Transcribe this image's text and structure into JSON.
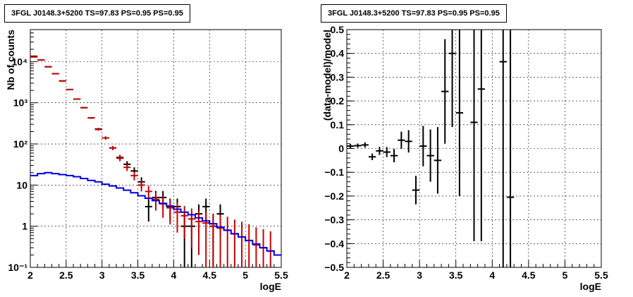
{
  "chart_data": [
    {
      "type": "line",
      "title": "3FGL J0148.3+5200 TS=97.83 PS=0.95 PS=0.95",
      "xlabel": "logE",
      "ylabel": "Nb of counts",
      "xlim": [
        2,
        5.5
      ],
      "ylim": [
        0.1,
        60000
      ],
      "yscale": "log",
      "grid": true,
      "xticks": [
        "2",
        "2.5",
        "3",
        "3.5",
        "4",
        "4.5",
        "5",
        "5.5"
      ],
      "yticks": [
        {
          "value": 0.1,
          "label": "10⁻¹"
        },
        {
          "value": 1,
          "label": "1"
        },
        {
          "value": 10,
          "label": "10"
        },
        {
          "value": 100,
          "label": "10²"
        },
        {
          "value": 1000,
          "label": "10³"
        },
        {
          "value": 10000,
          "label": "10⁴"
        }
      ],
      "series": [
        {
          "color": "#000000",
          "style": "errorbar",
          "points": [
            [
              2.05,
              13500,
              116
            ],
            [
              2.15,
              11000,
              105
            ],
            [
              2.25,
              7500,
              87
            ],
            [
              2.35,
              5100,
              71
            ],
            [
              2.45,
              3400,
              58
            ],
            [
              2.55,
              2100,
              46
            ],
            [
              2.65,
              1230,
              35
            ],
            [
              2.75,
              760,
              28
            ],
            [
              2.85,
              430,
              21
            ],
            [
              2.95,
              230,
              15
            ],
            [
              3.05,
              140,
              12
            ],
            [
              3.15,
              80,
              9
            ],
            [
              3.25,
              47,
              7
            ],
            [
              3.35,
              32,
              6
            ],
            [
              3.45,
              22,
              5
            ],
            [
              3.55,
              12,
              3.5
            ],
            [
              3.65,
              3,
              1.7
            ],
            [
              3.75,
              5,
              2.2
            ],
            [
              3.85,
              5,
              2.2
            ],
            [
              3.95,
              3,
              1.7
            ],
            [
              4.05,
              3,
              1.7
            ],
            [
              4.15,
              1,
              1
            ],
            [
              4.25,
              1,
              1
            ],
            [
              4.35,
              2,
              1.4
            ],
            [
              4.45,
              3,
              1.7
            ],
            [
              4.55,
              1,
              1
            ],
            [
              4.65,
              2,
              1.4
            ]
          ]
        },
        {
          "color": "#cc0000",
          "style": "errorbar",
          "points": [
            [
              2.05,
              13000,
              114
            ],
            [
              2.15,
              11000,
              105
            ],
            [
              2.25,
              7500,
              87
            ],
            [
              2.35,
              5100,
              71
            ],
            [
              2.45,
              3400,
              58
            ],
            [
              2.55,
              2100,
              46
            ],
            [
              2.65,
              1230,
              35
            ],
            [
              2.75,
              760,
              28
            ],
            [
              2.85,
              430,
              21
            ],
            [
              2.95,
              225,
              15
            ],
            [
              3.05,
              140,
              12
            ],
            [
              3.15,
              80,
              9
            ],
            [
              3.25,
              45,
              7
            ],
            [
              3.35,
              27,
              5
            ],
            [
              3.45,
              17,
              4
            ],
            [
              3.55,
              10,
              3
            ],
            [
              3.65,
              7,
              2.6
            ],
            [
              3.75,
              4.5,
              2.1
            ],
            [
              3.85,
              3.5,
              1.9
            ],
            [
              3.95,
              2.8,
              1.7
            ],
            [
              4.05,
              2.2,
              1.5
            ],
            [
              4.15,
              1.8,
              1.3
            ],
            [
              4.25,
              1.5,
              1.2
            ],
            [
              4.35,
              1.3,
              1.1
            ],
            [
              4.45,
              1.2,
              1.1
            ],
            [
              4.55,
              1,
              1
            ],
            [
              4.65,
              0.9,
              0.95
            ],
            [
              4.75,
              0.8,
              0.9
            ],
            [
              4.85,
              0.65,
              0.8
            ],
            [
              4.95,
              0.55,
              0.74
            ],
            [
              5.05,
              0.45,
              0.67
            ],
            [
              5.15,
              0.35,
              0.59
            ],
            [
              5.25,
              0.3,
              0.55
            ],
            [
              5.35,
              0.25,
              0.5
            ]
          ]
        },
        {
          "color": "#0000dd",
          "style": "histogram",
          "binwidth": 0.1,
          "points": [
            [
              2.05,
              17
            ],
            [
              2.15,
              19
            ],
            [
              2.25,
              20
            ],
            [
              2.35,
              19
            ],
            [
              2.45,
              18
            ],
            [
              2.55,
              17
            ],
            [
              2.65,
              16
            ],
            [
              2.75,
              14.5
            ],
            [
              2.85,
              13
            ],
            [
              2.95,
              12
            ],
            [
              3.05,
              10.5
            ],
            [
              3.15,
              9.5
            ],
            [
              3.25,
              8.5
            ],
            [
              3.35,
              7.5
            ],
            [
              3.45,
              6.5
            ],
            [
              3.55,
              5.5
            ],
            [
              3.65,
              4.8
            ],
            [
              3.75,
              4.2
            ],
            [
              3.85,
              3.6
            ],
            [
              3.95,
              3.1
            ],
            [
              4.05,
              2.6
            ],
            [
              4.15,
              2.2
            ],
            [
              4.25,
              1.9
            ],
            [
              4.35,
              1.6
            ],
            [
              4.45,
              1.35
            ],
            [
              4.55,
              1.15
            ],
            [
              4.65,
              0.95
            ],
            [
              4.75,
              0.8
            ],
            [
              4.85,
              0.66
            ],
            [
              4.95,
              0.55
            ],
            [
              5.05,
              0.45
            ],
            [
              5.15,
              0.37
            ],
            [
              5.25,
              0.3
            ],
            [
              5.35,
              0.25
            ],
            [
              5.45,
              0.2
            ]
          ]
        }
      ]
    },
    {
      "type": "scatter",
      "title": "3FGL J0148.3+5200 TS=97.83 PS=0.95 PS=0.95",
      "xlabel": "logE",
      "ylabel": "(data-model)/model",
      "xlim": [
        2,
        5.5
      ],
      "ylim": [
        -0.5,
        0.5
      ],
      "yscale": "linear",
      "grid": true,
      "xticks": [
        "2",
        "2.5",
        "3",
        "3.5",
        "4",
        "4.5",
        "5",
        "5.5"
      ],
      "yticks": [
        {
          "value": -0.5,
          "label": "−0.5"
        },
        {
          "value": -0.4,
          "label": "−0.4"
        },
        {
          "value": -0.3,
          "label": "−0.3"
        },
        {
          "value": -0.2,
          "label": "−0.2"
        },
        {
          "value": -0.1,
          "label": "−0.1"
        },
        {
          "value": 0,
          "label": "0"
        },
        {
          "value": 0.1,
          "label": "0.1"
        },
        {
          "value": 0.2,
          "label": "0.2"
        },
        {
          "value": 0.3,
          "label": "0.3"
        },
        {
          "value": 0.4,
          "label": "0.4"
        },
        {
          "value": 0.5,
          "label": "0.5"
        }
      ],
      "series": [
        {
          "color": "#000000",
          "style": "errorbar",
          "points": [
            [
              2.05,
              0.01,
              0.009
            ],
            [
              2.15,
              0.012,
              0.009
            ],
            [
              2.25,
              0.015,
              0.011
            ],
            [
              2.35,
              -0.035,
              0.014
            ],
            [
              2.45,
              -0.01,
              0.017
            ],
            [
              2.55,
              -0.015,
              0.021
            ],
            [
              2.65,
              -0.03,
              0.028
            ],
            [
              2.75,
              0.035,
              0.036
            ],
            [
              2.85,
              0.03,
              0.047
            ],
            [
              2.95,
              -0.175,
              0.06
            ],
            [
              3.05,
              0.01,
              0.085
            ],
            [
              3.15,
              -0.03,
              0.11
            ],
            [
              3.25,
              -0.05,
              0.14
            ],
            [
              3.35,
              0.24,
              0.22
            ],
            [
              3.45,
              0.4,
              0.31
            ],
            [
              3.55,
              0.15,
              0.35
            ],
            [
              3.75,
              0.11,
              0.5
            ],
            [
              3.85,
              0.25,
              0.64
            ],
            [
              4.15,
              0.365,
              0.9
            ],
            [
              4.25,
              -0.205,
              0.8
            ]
          ]
        }
      ]
    }
  ]
}
